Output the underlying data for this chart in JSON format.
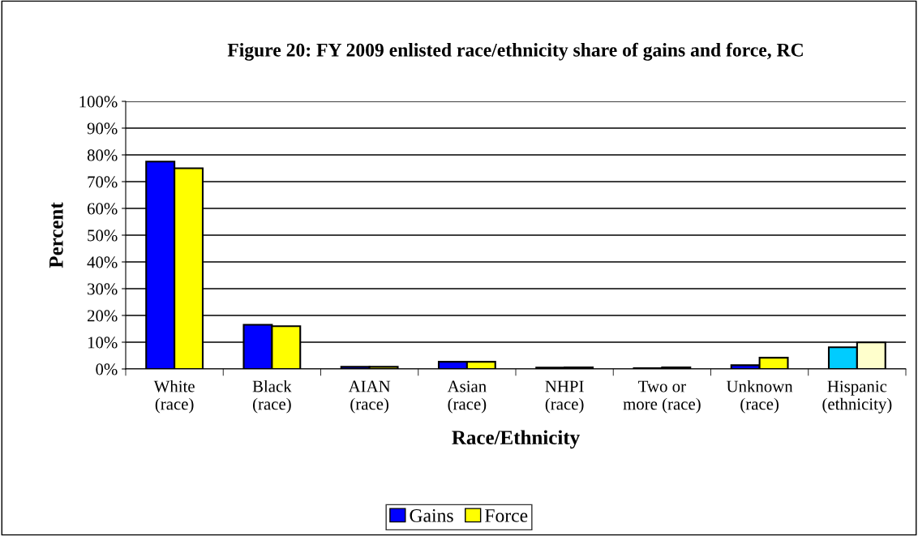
{
  "chart_data": {
    "type": "bar",
    "title": "Figure 20: FY 2009 enlisted race/ethnicity share of gains and force, RC",
    "xlabel": "Race/Ethnicity",
    "ylabel": "Percent",
    "categories": [
      "White\n(race)",
      "Black\n(race)",
      "AIAN\n(race)",
      "Asian\n(race)",
      "NHPI\n(race)",
      "Two or\nmore (race)",
      "Unknown\n(race)",
      "Hispanic\n(ethnicity)"
    ],
    "series": [
      {
        "name": "Gains",
        "color": "#0000ff",
        "colors": [
          "#0000ff",
          "#0000ff",
          "#0000ff",
          "#0000ff",
          "#0000ff",
          "#0000ff",
          "#0000ff",
          "#00ccff"
        ],
        "values": [
          77.5,
          16.5,
          0.8,
          2.7,
          0.5,
          0.3,
          1.4,
          8.1
        ]
      },
      {
        "name": "Force",
        "color": "#ffff00",
        "colors": [
          "#ffff00",
          "#ffff00",
          "#ffff00",
          "#ffff00",
          "#ffff00",
          "#ffff00",
          "#ffff00",
          "#ffffcc"
        ],
        "values": [
          75,
          16,
          0.8,
          2.7,
          0.6,
          0.6,
          4.2,
          9.9
        ]
      }
    ],
    "ylim": [
      0,
      100
    ],
    "yticks": [
      {
        "value": 0,
        "label": "0%"
      },
      {
        "value": 10,
        "label": "10%"
      },
      {
        "value": 20,
        "label": "20%"
      },
      {
        "value": 30,
        "label": "30%"
      },
      {
        "value": 40,
        "label": "40%"
      },
      {
        "value": 50,
        "label": "50%"
      },
      {
        "value": 60,
        "label": "60%"
      },
      {
        "value": 70,
        "label": "70%"
      },
      {
        "value": 80,
        "label": "80%"
      },
      {
        "value": 90,
        "label": "90%"
      },
      {
        "value": 100,
        "label": "100%"
      }
    ],
    "grid": "y",
    "legend": "bottom"
  }
}
